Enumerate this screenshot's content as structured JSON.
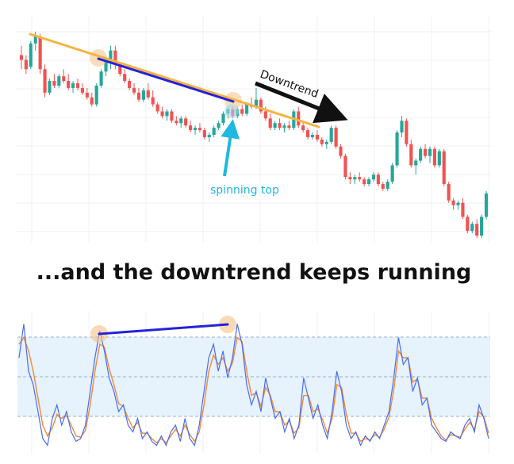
{
  "caption": "...and the downtrend keeps running",
  "annotations": {
    "downtrend_label": "Downtrend",
    "pattern_label": "spinning top"
  },
  "colors": {
    "bull": "#26a69a",
    "bear": "#ef5350",
    "trendline": "#f5b342",
    "divergence_line": "#2222dd",
    "arrow_down": "#111111",
    "arrow_pattern": "#1fb8e0",
    "highlight_circle": "#f5c283",
    "osc_fast": "#4a6cf0",
    "osc_slow": "#f08a3a",
    "band_fill": "#e6f2fc",
    "band_line": "#9ab0c8"
  },
  "chart_data": [
    {
      "type": "candlestick",
      "title": "",
      "trend": "downtrend",
      "ohlc": [
        [
          66,
          70,
          60,
          64
        ],
        [
          64,
          66,
          58,
          60
        ],
        [
          61,
          72,
          60,
          71
        ],
        [
          71,
          76,
          68,
          74
        ],
        [
          74,
          75,
          58,
          60
        ],
        [
          60,
          62,
          48,
          50
        ],
        [
          50,
          56,
          49,
          55
        ],
        [
          55,
          58,
          52,
          53
        ],
        [
          53,
          58,
          52,
          57
        ],
        [
          57,
          60,
          54,
          55
        ],
        [
          55,
          58,
          51,
          52
        ],
        [
          52,
          55,
          50,
          54
        ],
        [
          54,
          56,
          51,
          52
        ],
        [
          52,
          54,
          49,
          50
        ],
        [
          50,
          52,
          47,
          48
        ],
        [
          48,
          50,
          44,
          45
        ],
        [
          45,
          54,
          44,
          53
        ],
        [
          53,
          60,
          52,
          59
        ],
        [
          59,
          64,
          57,
          63
        ],
        [
          63,
          70,
          60,
          68
        ],
        [
          68,
          70,
          60,
          62
        ],
        [
          62,
          63,
          57,
          58
        ],
        [
          58,
          60,
          54,
          55
        ],
        [
          55,
          56,
          51,
          52
        ],
        [
          52,
          54,
          49,
          50
        ],
        [
          50,
          52,
          46,
          47
        ],
        [
          47,
          52,
          46,
          51
        ],
        [
          51,
          54,
          47,
          48
        ],
        [
          48,
          51,
          44,
          45
        ],
        [
          45,
          46,
          41,
          42
        ],
        [
          42,
          44,
          39,
          40
        ],
        [
          40,
          43,
          38,
          42
        ],
        [
          42,
          43,
          37,
          38
        ],
        [
          38,
          40,
          36,
          37
        ],
        [
          37,
          40,
          35,
          39
        ],
        [
          39,
          40,
          35,
          36
        ],
        [
          36,
          38,
          33,
          34
        ],
        [
          34,
          36,
          32,
          35
        ],
        [
          35,
          37,
          33,
          34
        ],
        [
          34,
          35,
          30,
          31
        ],
        [
          31,
          33,
          29,
          32
        ],
        [
          32,
          36,
          31,
          35
        ],
        [
          35,
          38,
          34,
          37
        ],
        [
          37,
          42,
          36,
          41
        ],
        [
          41,
          44,
          39,
          43
        ],
        [
          43,
          44,
          39,
          40
        ],
        [
          40,
          44,
          39,
          43
        ],
        [
          43,
          45,
          40,
          41
        ],
        [
          41,
          46,
          40,
          45
        ],
        [
          45,
          48,
          43,
          44
        ],
        [
          44,
          52,
          43,
          47
        ],
        [
          47,
          48,
          41,
          42
        ],
        [
          42,
          44,
          38,
          39
        ],
        [
          39,
          41,
          34,
          35
        ],
        [
          35,
          38,
          34,
          37
        ],
        [
          37,
          39,
          34,
          35
        ],
        [
          35,
          37,
          33,
          36
        ],
        [
          36,
          38,
          34,
          35
        ],
        [
          35,
          43,
          34,
          42
        ],
        [
          42,
          44,
          35,
          36
        ],
        [
          36,
          38,
          33,
          34
        ],
        [
          34,
          35,
          30,
          31
        ],
        [
          31,
          33,
          30,
          32
        ],
        [
          32,
          34,
          29,
          30
        ],
        [
          30,
          31,
          27,
          28
        ],
        [
          28,
          30,
          26,
          29
        ],
        [
          29,
          36,
          28,
          35
        ],
        [
          35,
          36,
          26,
          27
        ],
        [
          27,
          28,
          22,
          23
        ],
        [
          23,
          24,
          13,
          14
        ],
        [
          14,
          16,
          11,
          13
        ],
        [
          13,
          15,
          11,
          14
        ],
        [
          14,
          16,
          12,
          13
        ],
        [
          13,
          14,
          10,
          11
        ],
        [
          11,
          14,
          10,
          13
        ],
        [
          13,
          16,
          12,
          15
        ],
        [
          15,
          16,
          10,
          11
        ],
        [
          11,
          12,
          8,
          9
        ],
        [
          9,
          13,
          8,
          12
        ],
        [
          12,
          20,
          11,
          19
        ],
        [
          19,
          34,
          18,
          33
        ],
        [
          33,
          40,
          31,
          38
        ],
        [
          38,
          39,
          27,
          28
        ],
        [
          28,
          30,
          18,
          19
        ],
        [
          19,
          22,
          15,
          21
        ],
        [
          21,
          27,
          20,
          26
        ],
        [
          26,
          28,
          22,
          23
        ],
        [
          23,
          27,
          20,
          26
        ],
        [
          26,
          27,
          18,
          19
        ],
        [
          19,
          26,
          18,
          25
        ],
        [
          25,
          26,
          10,
          11
        ],
        [
          11,
          12,
          3,
          4
        ],
        [
          4,
          5,
          0,
          2
        ],
        [
          2,
          4,
          0,
          3
        ],
        [
          3,
          5,
          -4,
          -3
        ],
        [
          -3,
          -2,
          -10,
          -9
        ],
        [
          -9,
          -5,
          -10,
          -6
        ],
        [
          -6,
          -4,
          -12,
          -11
        ],
        [
          -11,
          -2,
          -12,
          -3
        ],
        [
          -3,
          8,
          -4,
          7
        ]
      ]
    },
    {
      "type": "line",
      "title": "",
      "ylim": [
        0,
        100
      ],
      "bands": [
        20,
        50,
        80
      ],
      "series": [
        {
          "values": [
            70,
            95,
            60,
            50,
            30,
            10,
            5,
            25,
            35,
            20,
            30,
            15,
            8,
            10,
            20,
            45,
            70,
            90,
            75,
            55,
            45,
            30,
            35,
            20,
            15,
            25,
            10,
            15,
            8,
            5,
            12,
            5,
            15,
            20,
            8,
            25,
            10,
            5,
            20,
            45,
            70,
            80,
            60,
            75,
            55,
            70,
            95,
            80,
            50,
            35,
            45,
            30,
            55,
            40,
            25,
            30,
            15,
            25,
            10,
            20,
            55,
            40,
            25,
            35,
            20,
            10,
            30,
            60,
            45,
            20,
            10,
            15,
            5,
            12,
            8,
            15,
            10,
            20,
            30,
            55,
            85,
            65,
            70,
            45,
            55,
            35,
            40,
            20,
            15,
            10,
            8,
            15,
            12,
            10,
            20,
            25,
            15,
            35,
            25,
            10
          ]
        },
        {
          "values": [
            80,
            85,
            75,
            60,
            40,
            20,
            12,
            18,
            28,
            25,
            27,
            20,
            12,
            11,
            16,
            35,
            60,
            80,
            78,
            62,
            50,
            36,
            34,
            25,
            18,
            22,
            14,
            14,
            10,
            7,
            10,
            7,
            12,
            17,
            12,
            20,
            13,
            8,
            15,
            35,
            60,
            72,
            65,
            70,
            60,
            66,
            85,
            82,
            60,
            42,
            44,
            34,
            48,
            42,
            30,
            30,
            20,
            23,
            14,
            18,
            42,
            42,
            30,
            32,
            24,
            14,
            25,
            50,
            48,
            28,
            14,
            14,
            8,
            10,
            9,
            13,
            11,
            17,
            26,
            46,
            75,
            70,
            70,
            52,
            54,
            40,
            40,
            25,
            18,
            12,
            9,
            13,
            12,
            11,
            17,
            22,
            17,
            30,
            26,
            14
          ]
        }
      ]
    }
  ]
}
